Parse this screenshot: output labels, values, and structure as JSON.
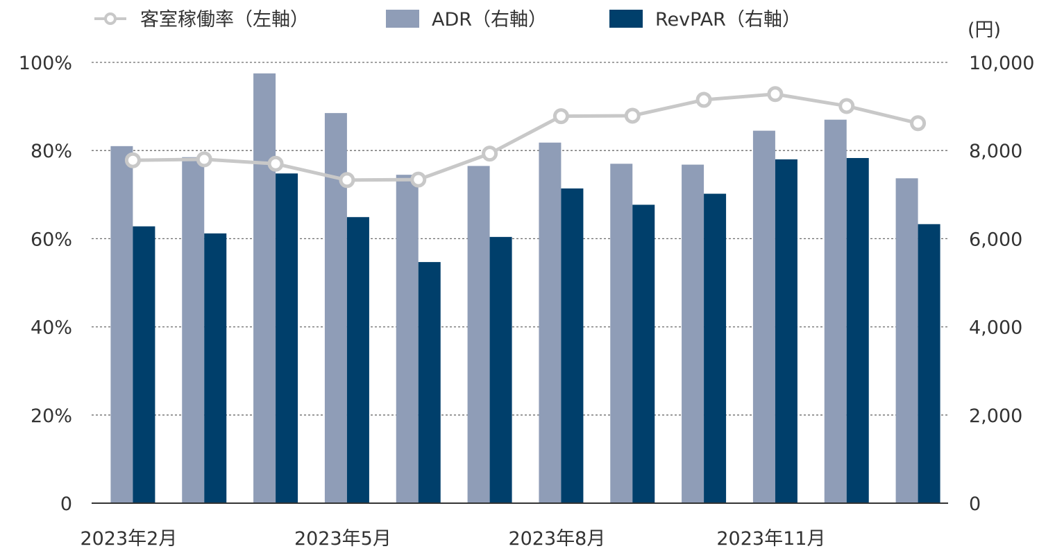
{
  "chart_data": {
    "type": "bar",
    "categories": [
      "2023-02",
      "2023-03",
      "2023-04",
      "2023-05",
      "2023-06",
      "2023-07",
      "2023-08",
      "2023-09",
      "2023-10",
      "2023-11",
      "2023-12",
      "2024-01"
    ],
    "x_tick_labels": [
      {
        "category_index": 0,
        "label": "2023年2月"
      },
      {
        "category_index": 3,
        "label": "2023年5月"
      },
      {
        "category_index": 6,
        "label": "2023年8月"
      },
      {
        "category_index": 9,
        "label": "2023年11月"
      }
    ],
    "series": [
      {
        "name": "ADR（右軸）",
        "type": "bar",
        "axis": "right",
        "color": "#8f9db7",
        "values": [
          8100,
          7850,
          9750,
          8850,
          7450,
          7650,
          8180,
          7700,
          7680,
          8450,
          8700,
          7370
        ]
      },
      {
        "name": "RevPAR（右軸）",
        "type": "bar",
        "axis": "right",
        "color": "#003f6b",
        "values": [
          6280,
          6120,
          7480,
          6490,
          5470,
          6040,
          7140,
          6770,
          7020,
          7800,
          7830,
          6330
        ]
      },
      {
        "name": "客室稼働率（左軸）",
        "type": "line",
        "axis": "left",
        "color": "#c8c8c8",
        "values": [
          77.8,
          78.0,
          77.0,
          73.3,
          73.4,
          79.3,
          87.8,
          87.9,
          91.5,
          92.8,
          90.1,
          86.2
        ]
      }
    ],
    "left_axis": {
      "ylim": [
        0,
        100
      ],
      "ticks": [
        "0",
        "20%",
        "40%",
        "60%",
        "80%",
        "100%"
      ]
    },
    "right_axis": {
      "ylim": [
        0,
        10000
      ],
      "unit": "(円)",
      "ticks": [
        "0",
        "2,000",
        "4,000",
        "6,000",
        "8,000",
        "10,000"
      ]
    },
    "grid": true,
    "legend_position": "top"
  }
}
